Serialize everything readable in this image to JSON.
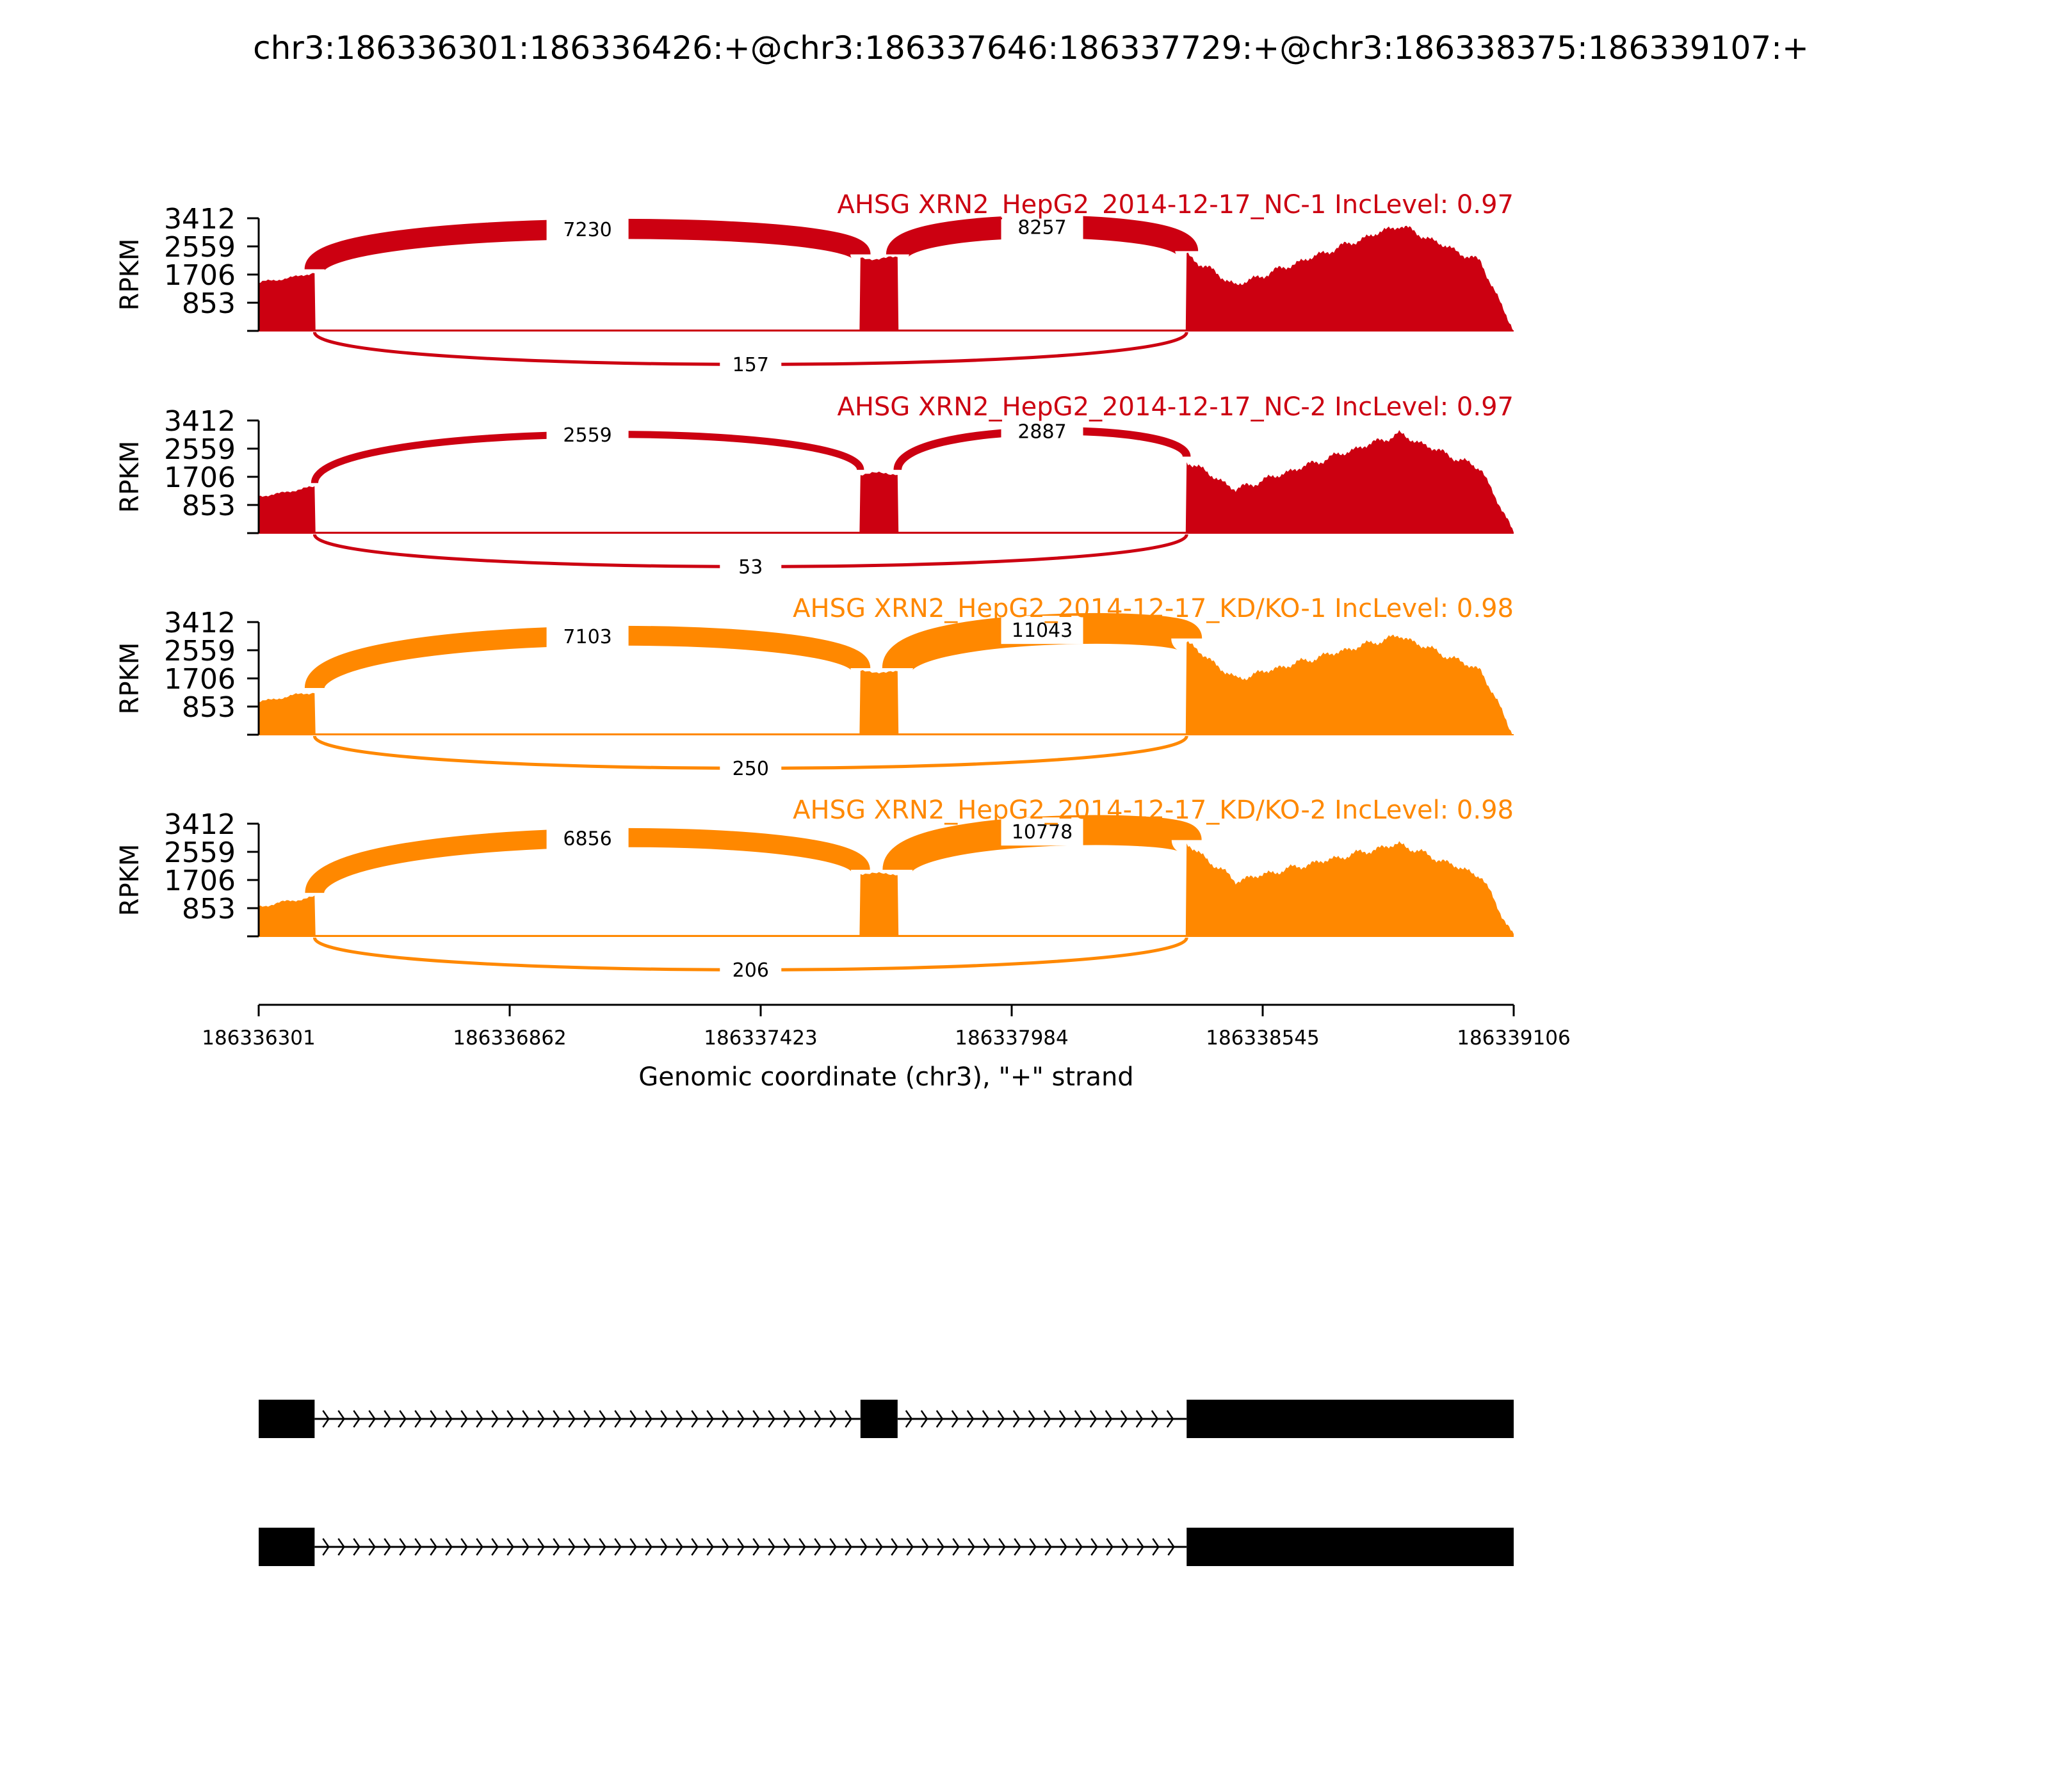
{
  "title": "chr3:186336301:186336426:+@chr3:186337646:186337729:+@chr3:186338375:186339107:+",
  "chart_data": {
    "type": "sashimi",
    "y_axis_label": "RPKM",
    "y_ticks": [
      "3412",
      "2559",
      "1706",
      "853"
    ],
    "ylim": [
      0,
      3412
    ],
    "x_axis_label": "Genomic coordinate (chr3), \"+\" strand",
    "x_ticks": [
      "186336301",
      "186336862",
      "186337423",
      "186337984",
      "186338545",
      "186339106"
    ],
    "xlim": [
      186336301,
      186339106
    ],
    "exons": [
      [
        186336301,
        186336426
      ],
      [
        186337646,
        186337729
      ],
      [
        186338375,
        186339107
      ]
    ],
    "samples": [
      {
        "label": "AHSG XRN2_HepG2_2014-12-17_NC-1 IncLevel: 0.97",
        "color": "#cc0011",
        "coverage_levels": {
          "exon1_start": 1450,
          "exon1_end": 1750,
          "exon2": 2200,
          "exon3_start": 2300,
          "exon3_peak": 3200
        },
        "junctions": [
          {
            "from": 186336426,
            "to": 186337646,
            "count": "7230",
            "side": "above"
          },
          {
            "from": 186337729,
            "to": 186338375,
            "count": "8257",
            "side": "above"
          },
          {
            "from": 186336426,
            "to": 186338375,
            "count": "157",
            "side": "below"
          }
        ]
      },
      {
        "label": "AHSG XRN2_HepG2_2014-12-17_NC-2 IncLevel: 0.97",
        "color": "#cc0011",
        "coverage_levels": {
          "exon1_start": 1100,
          "exon1_end": 1400,
          "exon2": 1800,
          "exon3_start": 2200,
          "exon3_peak": 3000
        },
        "junctions": [
          {
            "from": 186336426,
            "to": 186337646,
            "count": "2559",
            "side": "above"
          },
          {
            "from": 186337729,
            "to": 186338375,
            "count": "2887",
            "side": "above"
          },
          {
            "from": 186336426,
            "to": 186338375,
            "count": "53",
            "side": "below"
          }
        ]
      },
      {
        "label": "AHSG XRN2_HepG2_2014-12-17_KD/KO-1 IncLevel: 0.98",
        "color": "#ff8800",
        "coverage_levels": {
          "exon1_start": 1000,
          "exon1_end": 1300,
          "exon2": 1900,
          "exon3_start": 2800,
          "exon3_peak": 3000
        },
        "junctions": [
          {
            "from": 186336426,
            "to": 186337646,
            "count": "7103",
            "side": "above"
          },
          {
            "from": 186337729,
            "to": 186338375,
            "count": "11043",
            "side": "above"
          },
          {
            "from": 186336426,
            "to": 186338375,
            "count": "250",
            "side": "below"
          }
        ]
      },
      {
        "label": "AHSG XRN2_HepG2_2014-12-17_KD/KO-2 IncLevel: 0.98",
        "color": "#ff8800",
        "coverage_levels": {
          "exon1_start": 900,
          "exon1_end": 1200,
          "exon2": 1900,
          "exon3_start": 2800,
          "exon3_peak": 2800
        },
        "junctions": [
          {
            "from": 186336426,
            "to": 186337646,
            "count": "6856",
            "side": "above"
          },
          {
            "from": 186337729,
            "to": 186338375,
            "count": "10778",
            "side": "above"
          },
          {
            "from": 186336426,
            "to": 186338375,
            "count": "206",
            "side": "below"
          }
        ]
      }
    ],
    "isoforms": [
      {
        "exons": [
          [
            186336301,
            186336426
          ],
          [
            186337646,
            186337729
          ],
          [
            186338375,
            186339107
          ]
        ]
      },
      {
        "exons": [
          [
            186336301,
            186336426
          ],
          [
            186338375,
            186339107
          ]
        ]
      }
    ]
  }
}
